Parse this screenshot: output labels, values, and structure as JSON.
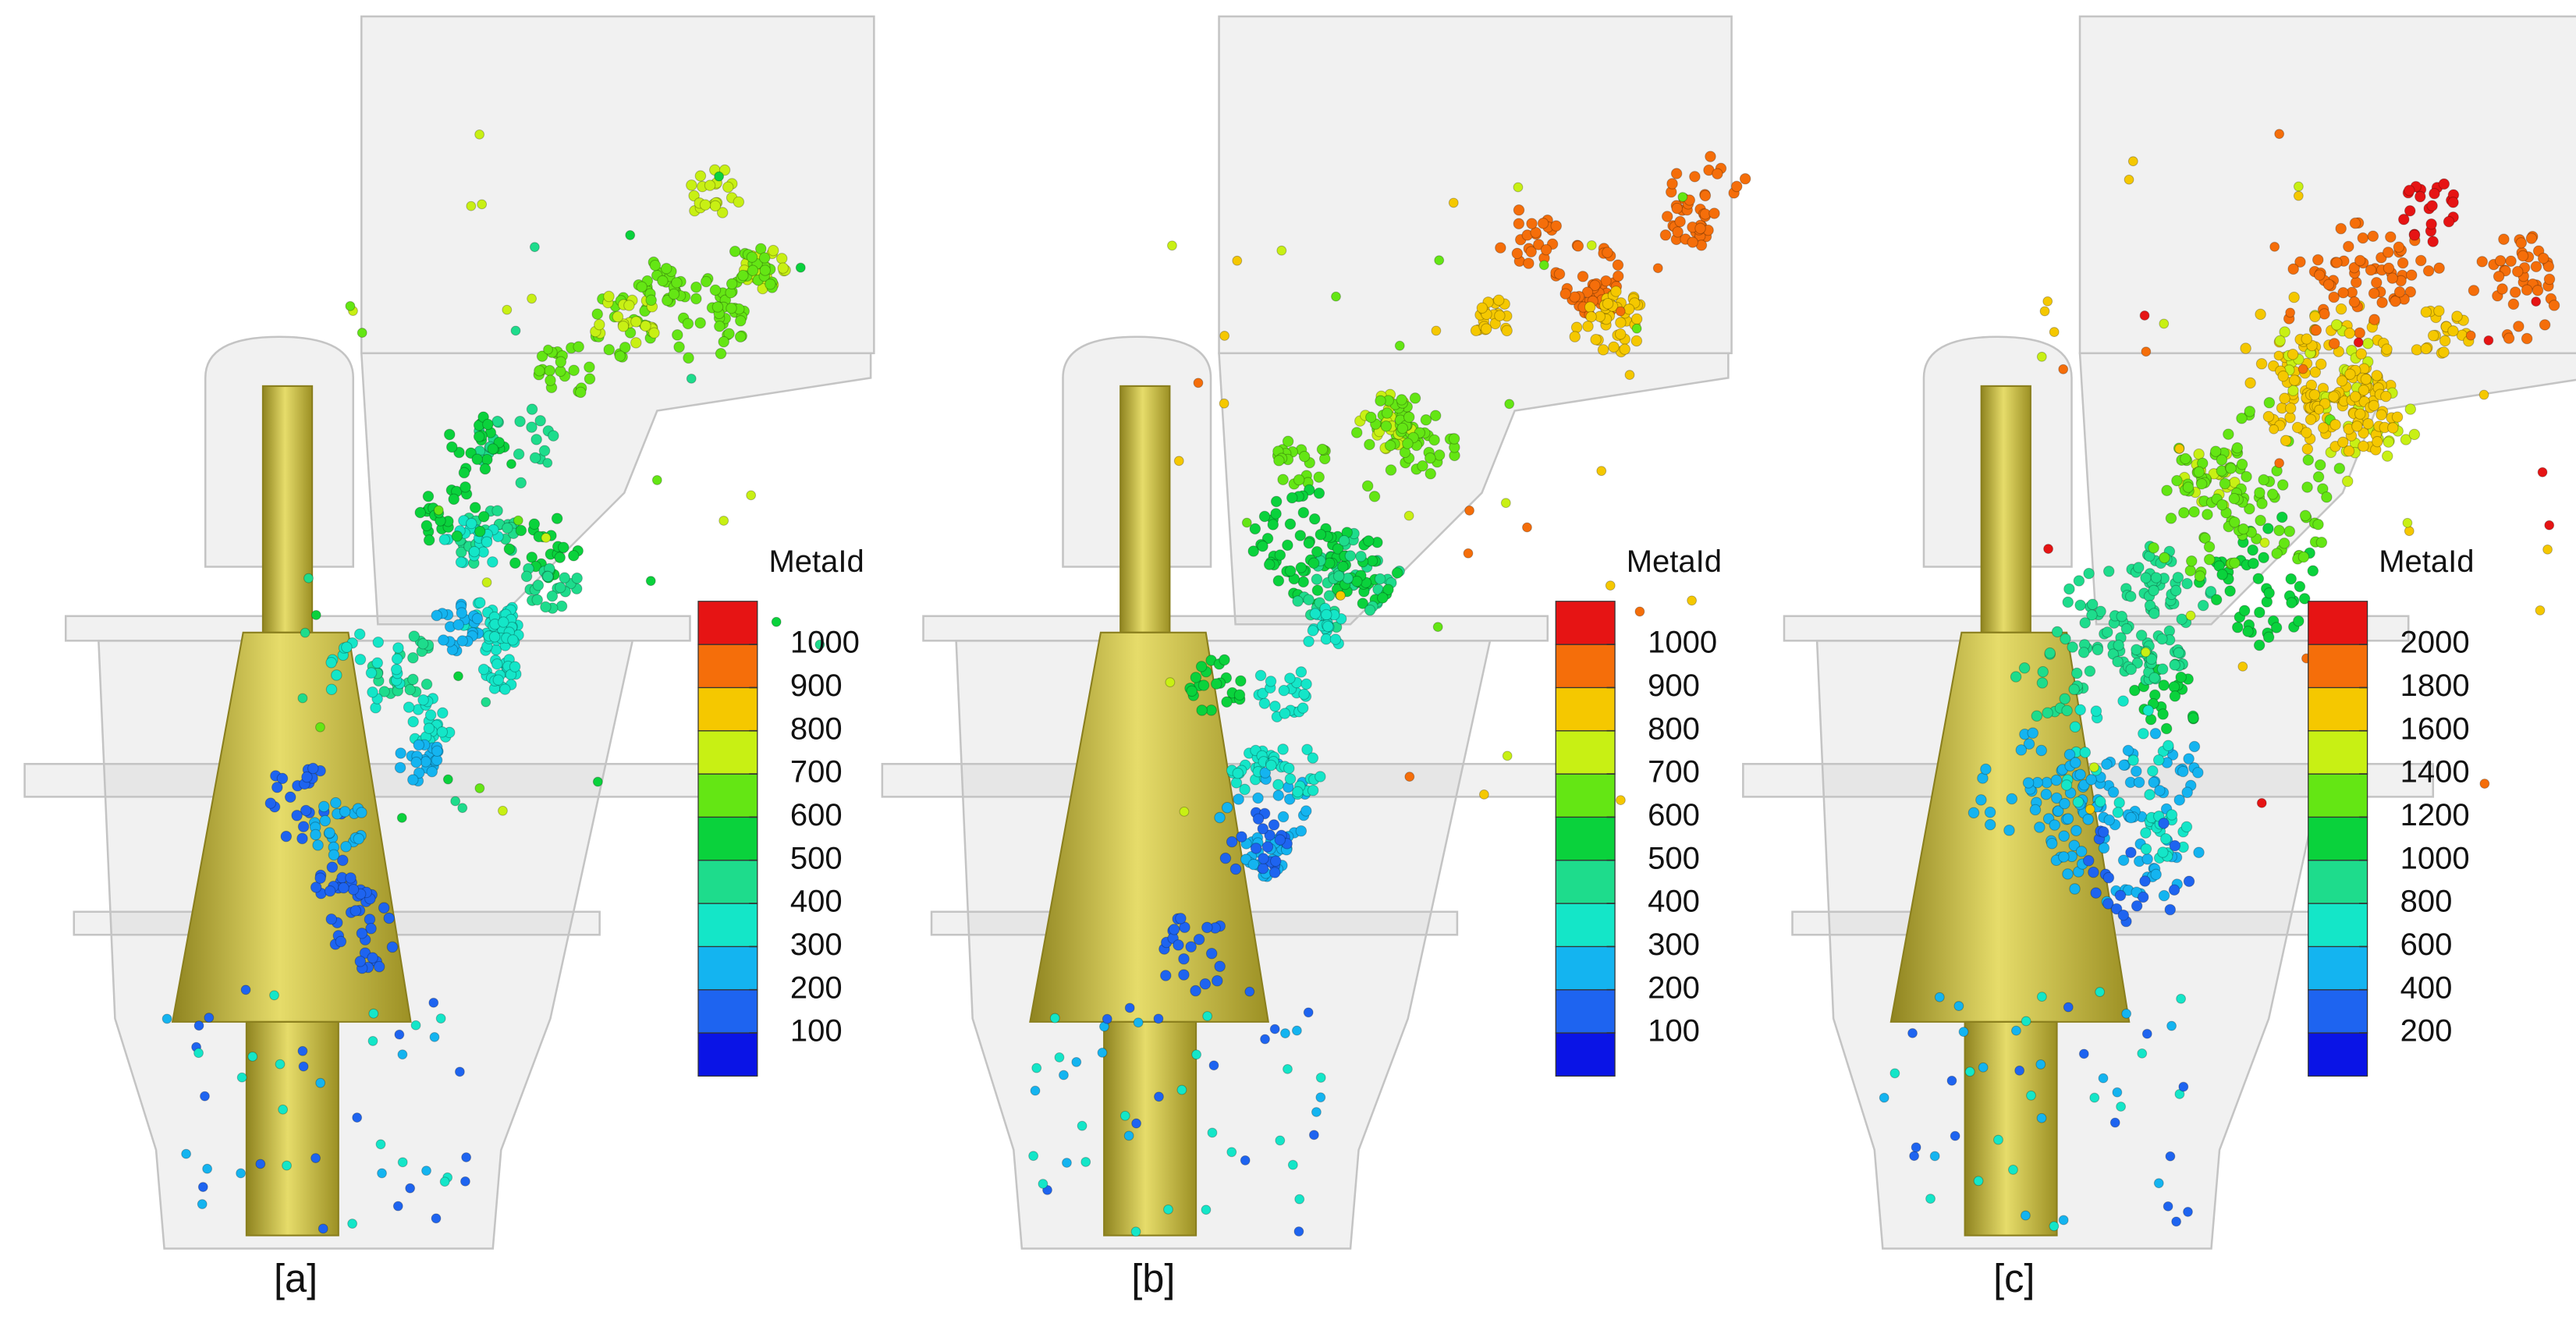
{
  "panels": [
    {
      "label": "[a]",
      "legend": {
        "title": "MetaId",
        "ticks": [
          100,
          200,
          300,
          400,
          500,
          600,
          700,
          800,
          900,
          1000
        ]
      }
    },
    {
      "label": "[b]",
      "legend": {
        "title": "MetaId",
        "ticks": [
          100,
          200,
          300,
          400,
          500,
          600,
          700,
          800,
          900,
          1000
        ]
      }
    },
    {
      "label": "[c]",
      "legend": {
        "title": "MetaId",
        "ticks": [
          200,
          400,
          600,
          800,
          1000,
          1200,
          1400,
          1600,
          1800,
          2000
        ]
      }
    }
  ],
  "colorbar_colors": [
    "#0a14e6",
    "#1e64f0",
    "#14b4f0",
    "#14e6c8",
    "#1edc8c",
    "#0ad23c",
    "#64e614",
    "#c8f014",
    "#f5c800",
    "#f56e0a",
    "#e61414"
  ]
}
